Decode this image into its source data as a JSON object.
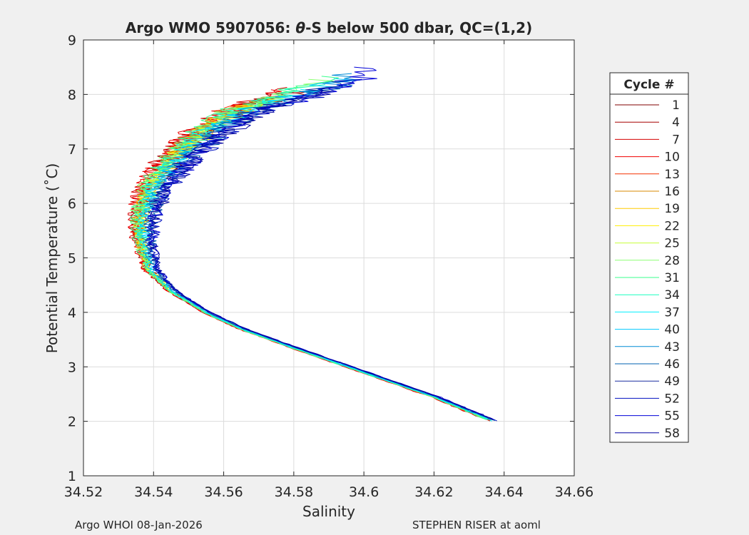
{
  "chart_data": {
    "type": "line",
    "title": "Argo WMO 5907056: θ-S below 500 dbar,  QC=(1,2)",
    "title_parts": {
      "before": "Argo WMO 5907056: ",
      "theta": "θ",
      "after": "-S below 500 dbar,  QC=(1,2)"
    },
    "xlabel": "Salinity",
    "ylabel": "Potential Temperature (˚C)",
    "xlim": [
      34.52,
      34.66
    ],
    "ylim": [
      1,
      9
    ],
    "xticks": [
      34.52,
      34.54,
      34.56,
      34.58,
      34.6,
      34.62,
      34.64,
      34.66
    ],
    "xtick_labels": [
      "34.52",
      "34.54",
      "34.56",
      "34.58",
      "34.6",
      "34.62",
      "34.64",
      "34.66"
    ],
    "yticks": [
      1,
      2,
      3,
      4,
      5,
      6,
      7,
      8,
      9
    ],
    "ytick_labels": [
      "1",
      "2",
      "3",
      "4",
      "5",
      "6",
      "7",
      "8",
      "9"
    ],
    "grid": true,
    "legend": {
      "title": "Cycle #",
      "placement": "outside-right",
      "entries": [
        {
          "label": "1",
          "color": "#800000"
        },
        {
          "label": "4",
          "color": "#a60000"
        },
        {
          "label": "7",
          "color": "#d40000"
        },
        {
          "label": "10",
          "color": "#f00000"
        },
        {
          "label": "13",
          "color": "#f53000"
        },
        {
          "label": "16",
          "color": "#d98a00"
        },
        {
          "label": "19",
          "color": "#ffcc00"
        },
        {
          "label": "22",
          "color": "#ffee00"
        },
        {
          "label": "25",
          "color": "#c6ff39"
        },
        {
          "label": "28",
          "color": "#8cff73"
        },
        {
          "label": "31",
          "color": "#39ff8c"
        },
        {
          "label": "34",
          "color": "#19ffbf"
        },
        {
          "label": "37",
          "color": "#00f0ff"
        },
        {
          "label": "40",
          "color": "#00c8ff"
        },
        {
          "label": "43",
          "color": "#008cd6"
        },
        {
          "label": "46",
          "color": "#0060b0"
        },
        {
          "label": "49",
          "color": "#1a2ea0"
        },
        {
          "label": "52",
          "color": "#0010c0"
        },
        {
          "label": "55",
          "color": "#0000d8"
        },
        {
          "label": "58",
          "color": "#0000a0"
        }
      ]
    },
    "profile_shape": {
      "description_points_s_theta": [
        [
          34.637,
          2.0
        ],
        [
          34.62,
          2.45
        ],
        [
          34.6,
          2.9
        ],
        [
          34.58,
          3.35
        ],
        [
          34.565,
          3.7
        ],
        [
          34.555,
          4.0
        ],
        [
          34.545,
          4.4
        ],
        [
          34.539,
          4.8
        ],
        [
          34.537,
          5.3
        ],
        [
          34.537,
          5.8
        ],
        [
          34.54,
          6.3
        ],
        [
          34.546,
          6.8
        ],
        [
          34.555,
          7.3
        ],
        [
          34.565,
          7.7
        ],
        [
          34.58,
          8.0
        ],
        [
          34.592,
          8.3
        ]
      ],
      "series": [
        {
          "cycle": 1,
          "s_offset": 0.0,
          "t_top": 8.05
        },
        {
          "cycle": 4,
          "s_offset": -0.002,
          "t_top": 8.1
        },
        {
          "cycle": 7,
          "s_offset": -0.003,
          "t_top": 8.15
        },
        {
          "cycle": 10,
          "s_offset": -0.003,
          "t_top": 8.1
        },
        {
          "cycle": 13,
          "s_offset": -0.002,
          "t_top": 7.95
        },
        {
          "cycle": 16,
          "s_offset": -0.001,
          "t_top": 7.9
        },
        {
          "cycle": 19,
          "s_offset": -0.001,
          "t_top": 7.85
        },
        {
          "cycle": 22,
          "s_offset": 0.0,
          "t_top": 7.9
        },
        {
          "cycle": 25,
          "s_offset": -0.001,
          "t_top": 8.0
        },
        {
          "cycle": 28,
          "s_offset": -0.002,
          "t_top": 8.3
        },
        {
          "cycle": 31,
          "s_offset": -0.002,
          "t_top": 8.35
        },
        {
          "cycle": 34,
          "s_offset": -0.001,
          "t_top": 8.2
        },
        {
          "cycle": 37,
          "s_offset": 0.0,
          "t_top": 8.1
        },
        {
          "cycle": 40,
          "s_offset": 0.001,
          "t_top": 8.3
        },
        {
          "cycle": 43,
          "s_offset": 0.002,
          "t_top": 8.4
        },
        {
          "cycle": 46,
          "s_offset": 0.003,
          "t_top": 8.2
        },
        {
          "cycle": 49,
          "s_offset": 0.003,
          "t_top": 8.25
        },
        {
          "cycle": 52,
          "s_offset": 0.004,
          "t_top": 8.3
        },
        {
          "cycle": 55,
          "s_offset": 0.004,
          "t_top": 8.52
        },
        {
          "cycle": 58,
          "s_offset": 0.004,
          "t_top": 8.15
        }
      ]
    }
  },
  "footer": {
    "left": "Argo WHOI 08-Jan-2026",
    "right": "STEPHEN RISER at aoml"
  }
}
